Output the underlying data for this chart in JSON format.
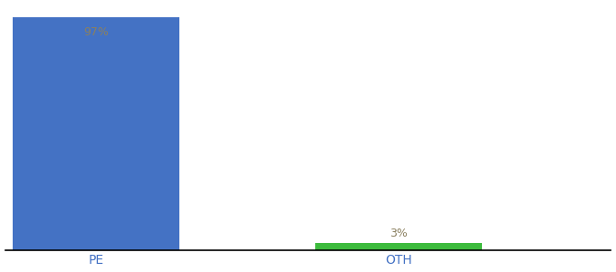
{
  "categories": [
    "PE",
    "OTH"
  ],
  "values": [
    97,
    3
  ],
  "bar_colors": [
    "#4472c4",
    "#3dbb3d"
  ],
  "label_texts": [
    "97%",
    "3%"
  ],
  "label_color_inside": "#8b8060",
  "label_color_outside": "#8b8060",
  "xlabel_color": "#4472c4",
  "background_color": "#ffffff",
  "ylim": [
    0,
    102
  ],
  "bar_width": 0.55,
  "figsize": [
    6.8,
    3.0
  ],
  "dpi": 100,
  "xlim": [
    -0.3,
    1.7
  ]
}
